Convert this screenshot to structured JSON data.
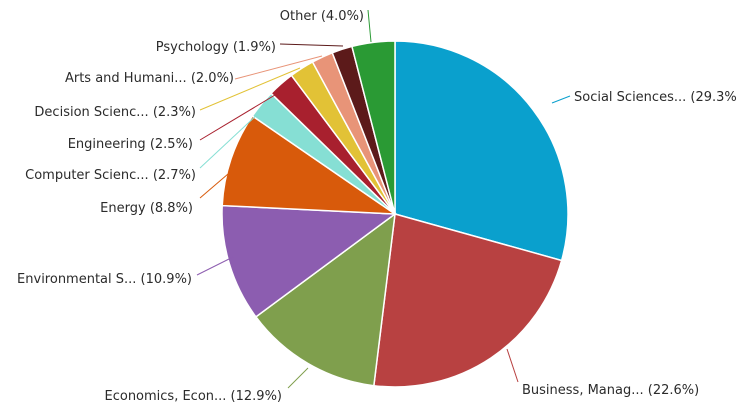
{
  "chart_data": {
    "type": "pie",
    "title": "",
    "unit": "%",
    "slices": [
      {
        "label": "Social Sciences...",
        "value": 29.3,
        "display": "Social Sciences... (29.3%)",
        "color": "#0aa0cd"
      },
      {
        "label": "Business, Manag...",
        "value": 22.6,
        "display": "Business, Manag... (22.6%)",
        "color": "#b84141"
      },
      {
        "label": "Economics, Econ...",
        "value": 12.9,
        "display": "Economics, Econ... (12.9%)",
        "color": "#7f9f4d"
      },
      {
        "label": "Environmental S...",
        "value": 10.9,
        "display": "Environmental S... (10.9%)",
        "color": "#8c5db0"
      },
      {
        "label": "Energy",
        "value": 8.8,
        "display": "Energy (8.8%)",
        "color": "#d85a0b"
      },
      {
        "label": "Computer Scienc...",
        "value": 2.7,
        "display": "Computer Scienc... (2.7%)",
        "color": "#86dfd4"
      },
      {
        "label": "Engineering",
        "value": 2.5,
        "display": "Engineering (2.5%)",
        "color": "#a8202e"
      },
      {
        "label": "Decision Scienc...",
        "value": 2.3,
        "display": "Decision Scienc... (2.3%)",
        "color": "#e2c236"
      },
      {
        "label": "Arts and Humani...",
        "value": 2.0,
        "display": "Arts and Humani... (2.0%)",
        "color": "#e89478"
      },
      {
        "label": "Psychology",
        "value": 1.9,
        "display": "Psychology (1.9%)",
        "color": "#5c1a1a"
      },
      {
        "label": "Other",
        "value": 4.0,
        "display": "Other (4.0%)",
        "color": "#2a9a34"
      }
    ]
  }
}
